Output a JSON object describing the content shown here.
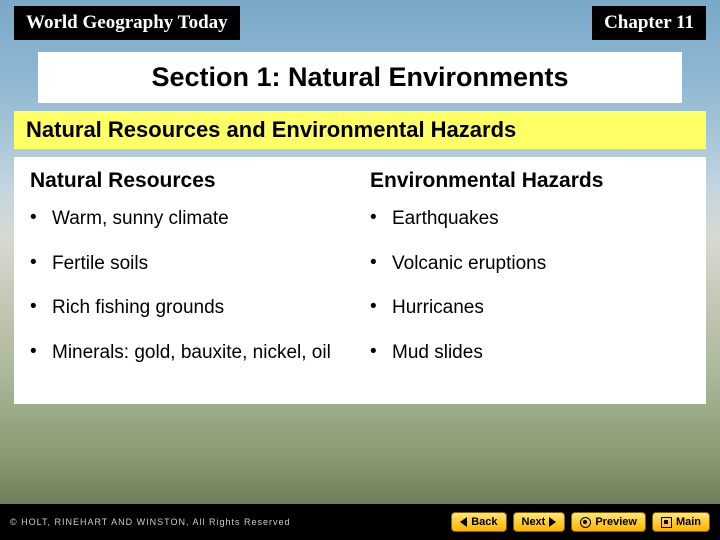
{
  "header": {
    "left": "World Geography Today",
    "right": "Chapter 11"
  },
  "section_title": "Section 1: Natural Environments",
  "subtitle": "Natural Resources and Environmental Hazards",
  "columns": {
    "left": {
      "header": "Natural Resources",
      "items": [
        "Warm, sunny climate",
        "Fertile soils",
        "Rich fishing grounds",
        "Minerals: gold, bauxite, nickel, oil"
      ]
    },
    "right": {
      "header": "Environmental Hazards",
      "items": [
        "Earthquakes",
        "Volcanic eruptions",
        "Hurricanes",
        "Mud slides"
      ]
    }
  },
  "footer": {
    "copyright": "© HOLT, RINEHART AND WINSTON, All Rights Reserved",
    "nav": {
      "back": "Back",
      "next": "Next",
      "preview": "Preview",
      "main": "Main"
    }
  },
  "colors": {
    "header_bg": "#000000",
    "header_text": "#ffffff",
    "section_bg": "#ffffff",
    "subtitle_bg": "#ffff66",
    "content_bg": "#ffffff",
    "footer_bg": "#000000",
    "nav_btn_gradient_top": "#ffe680",
    "nav_btn_gradient_bottom": "#ffb300"
  },
  "typography": {
    "header_fontsize": 19,
    "section_title_fontsize": 27,
    "subtitle_fontsize": 22,
    "col_header_fontsize": 21,
    "bullet_fontsize": 19,
    "nav_fontsize": 11
  }
}
